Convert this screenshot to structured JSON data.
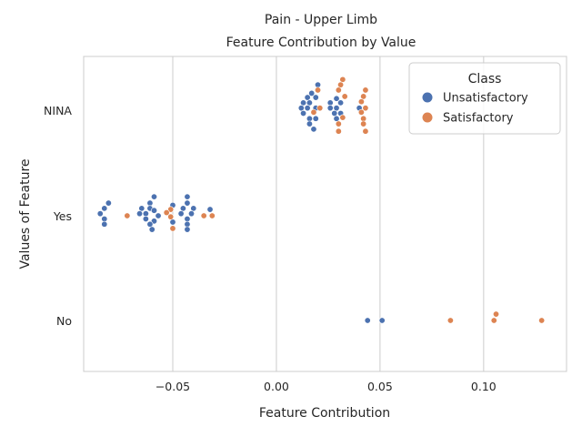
{
  "chart_data": {
    "type": "scatter",
    "title": "Pain - Upper Limb",
    "subtitle": "Feature Contribution by Value",
    "xlabel": "Feature Contribution",
    "ylabel": "Values of Feature",
    "xlim": [
      -0.093,
      0.14
    ],
    "x_ticks": [
      -0.05,
      0.0,
      0.05,
      0.1
    ],
    "x_tick_labels": [
      "−0.05",
      "0.00",
      "0.05",
      "0.10"
    ],
    "categories": [
      "NINA",
      "Yes",
      "No"
    ],
    "grid": true,
    "legend_position": "top-right",
    "legend_title": "Class",
    "colors": {
      "Unsatisfactory": "#4c72b0",
      "Satisfactory": "#dd8452"
    },
    "series": [
      {
        "name": "Unsatisfactory",
        "points": [
          {
            "category": "NINA",
            "x": 0.02,
            "offset": 0.24
          },
          {
            "category": "NINA",
            "x": 0.017,
            "offset": 0.16
          },
          {
            "category": "NINA",
            "x": 0.015,
            "offset": 0.12
          },
          {
            "category": "NINA",
            "x": 0.019,
            "offset": 0.12
          },
          {
            "category": "NINA",
            "x": 0.013,
            "offset": 0.07
          },
          {
            "category": "NINA",
            "x": 0.016,
            "offset": 0.07
          },
          {
            "category": "NINA",
            "x": 0.029,
            "offset": 0.11
          },
          {
            "category": "NINA",
            "x": 0.026,
            "offset": 0.07
          },
          {
            "category": "NINA",
            "x": 0.031,
            "offset": 0.07
          },
          {
            "category": "NINA",
            "x": 0.012,
            "offset": 0.02
          },
          {
            "category": "NINA",
            "x": 0.015,
            "offset": 0.02
          },
          {
            "category": "NINA",
            "x": 0.019,
            "offset": 0.02
          },
          {
            "category": "NINA",
            "x": 0.026,
            "offset": 0.02
          },
          {
            "category": "NINA",
            "x": 0.029,
            "offset": 0.02
          },
          {
            "category": "NINA",
            "x": 0.04,
            "offset": 0.02
          },
          {
            "category": "NINA",
            "x": 0.013,
            "offset": -0.03
          },
          {
            "category": "NINA",
            "x": 0.028,
            "offset": -0.03
          },
          {
            "category": "NINA",
            "x": 0.031,
            "offset": -0.03
          },
          {
            "category": "NINA",
            "x": 0.016,
            "offset": -0.08
          },
          {
            "category": "NINA",
            "x": 0.019,
            "offset": -0.08
          },
          {
            "category": "NINA",
            "x": 0.029,
            "offset": -0.08
          },
          {
            "category": "NINA",
            "x": 0.016,
            "offset": -0.13
          },
          {
            "category": "NINA",
            "x": 0.018,
            "offset": -0.18
          },
          {
            "category": "Yes",
            "x": -0.059,
            "offset": 0.18
          },
          {
            "category": "Yes",
            "x": -0.043,
            "offset": 0.18
          },
          {
            "category": "Yes",
            "x": -0.081,
            "offset": 0.12
          },
          {
            "category": "Yes",
            "x": -0.061,
            "offset": 0.12
          },
          {
            "category": "Yes",
            "x": -0.05,
            "offset": 0.1
          },
          {
            "category": "Yes",
            "x": -0.043,
            "offset": 0.12
          },
          {
            "category": "Yes",
            "x": -0.083,
            "offset": 0.07
          },
          {
            "category": "Yes",
            "x": -0.065,
            "offset": 0.07
          },
          {
            "category": "Yes",
            "x": -0.061,
            "offset": 0.07
          },
          {
            "category": "Yes",
            "x": -0.045,
            "offset": 0.07
          },
          {
            "category": "Yes",
            "x": -0.04,
            "offset": 0.07
          },
          {
            "category": "Yes",
            "x": -0.032,
            "offset": 0.06
          },
          {
            "category": "Yes",
            "x": -0.085,
            "offset": 0.02
          },
          {
            "category": "Yes",
            "x": -0.066,
            "offset": 0.02
          },
          {
            "category": "Yes",
            "x": -0.063,
            "offset": 0.02
          },
          {
            "category": "Yes",
            "x": -0.059,
            "offset": 0.05
          },
          {
            "category": "Yes",
            "x": -0.057,
            "offset": 0.0
          },
          {
            "category": "Yes",
            "x": -0.046,
            "offset": 0.02
          },
          {
            "category": "Yes",
            "x": -0.041,
            "offset": 0.02
          },
          {
            "category": "Yes",
            "x": -0.083,
            "offset": -0.03
          },
          {
            "category": "Yes",
            "x": -0.063,
            "offset": -0.03
          },
          {
            "category": "Yes",
            "x": -0.059,
            "offset": -0.05
          },
          {
            "category": "Yes",
            "x": -0.05,
            "offset": -0.06
          },
          {
            "category": "Yes",
            "x": -0.043,
            "offset": -0.03
          },
          {
            "category": "Yes",
            "x": -0.083,
            "offset": -0.08
          },
          {
            "category": "Yes",
            "x": -0.061,
            "offset": -0.08
          },
          {
            "category": "Yes",
            "x": -0.043,
            "offset": -0.08
          },
          {
            "category": "Yes",
            "x": -0.06,
            "offset": -0.13
          },
          {
            "category": "Yes",
            "x": -0.043,
            "offset": -0.13
          },
          {
            "category": "No",
            "x": 0.044,
            "offset": 0.0
          },
          {
            "category": "No",
            "x": 0.051,
            "offset": 0.0
          }
        ]
      },
      {
        "name": "Satisfactory",
        "points": [
          {
            "category": "NINA",
            "x": 0.032,
            "offset": 0.29
          },
          {
            "category": "NINA",
            "x": 0.031,
            "offset": 0.24
          },
          {
            "category": "NINA",
            "x": 0.02,
            "offset": 0.19
          },
          {
            "category": "NINA",
            "x": 0.03,
            "offset": 0.19
          },
          {
            "category": "NINA",
            "x": 0.043,
            "offset": 0.19
          },
          {
            "category": "NINA",
            "x": 0.033,
            "offset": 0.13
          },
          {
            "category": "NINA",
            "x": 0.042,
            "offset": 0.13
          },
          {
            "category": "NINA",
            "x": 0.041,
            "offset": 0.08
          },
          {
            "category": "NINA",
            "x": 0.021,
            "offset": 0.02
          },
          {
            "category": "NINA",
            "x": 0.043,
            "offset": 0.02
          },
          {
            "category": "NINA",
            "x": 0.018,
            "offset": -0.02
          },
          {
            "category": "NINA",
            "x": 0.041,
            "offset": -0.02
          },
          {
            "category": "NINA",
            "x": 0.032,
            "offset": -0.07
          },
          {
            "category": "NINA",
            "x": 0.042,
            "offset": -0.08
          },
          {
            "category": "NINA",
            "x": 0.03,
            "offset": -0.13
          },
          {
            "category": "NINA",
            "x": 0.042,
            "offset": -0.13
          },
          {
            "category": "NINA",
            "x": 0.03,
            "offset": -0.2
          },
          {
            "category": "NINA",
            "x": 0.043,
            "offset": -0.2
          },
          {
            "category": "Yes",
            "x": -0.051,
            "offset": 0.06
          },
          {
            "category": "Yes",
            "x": -0.053,
            "offset": 0.03
          },
          {
            "category": "Yes",
            "x": -0.072,
            "offset": 0.0
          },
          {
            "category": "Yes",
            "x": -0.051,
            "offset": -0.01
          },
          {
            "category": "Yes",
            "x": -0.035,
            "offset": 0.0
          },
          {
            "category": "Yes",
            "x": -0.031,
            "offset": 0.0
          },
          {
            "category": "Yes",
            "x": -0.05,
            "offset": -0.12
          },
          {
            "category": "No",
            "x": 0.084,
            "offset": 0.0
          },
          {
            "category": "No",
            "x": 0.106,
            "offset": 0.06
          },
          {
            "category": "No",
            "x": 0.105,
            "offset": 0.0
          },
          {
            "category": "No",
            "x": 0.128,
            "offset": 0.0
          }
        ]
      }
    ]
  }
}
